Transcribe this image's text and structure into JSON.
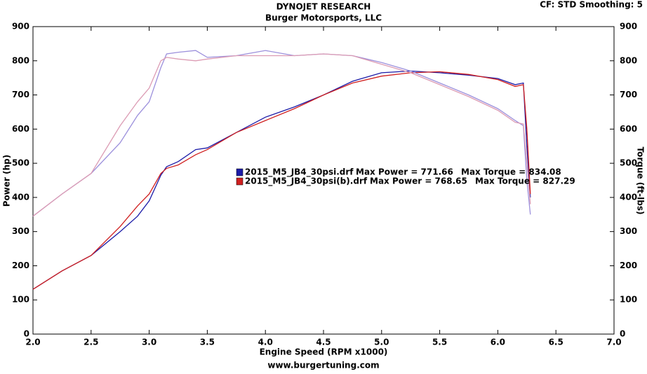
{
  "chart_data": {
    "type": "line",
    "title": "DYNOJET RESEARCH",
    "subtitle": "Burger Motorsports, LLC",
    "corner_note": "CF: STD  Smoothing: 5",
    "x_label": "Engine Speed (RPM x1000)",
    "y_label": "Power (hp)",
    "y2_label": "Torque (ft-lbs)",
    "footer": "www.burgertuning.com",
    "x": [
      2.0,
      2.25,
      2.5,
      2.75,
      2.9,
      3.0,
      3.1,
      3.15,
      3.25,
      3.4,
      3.5,
      3.75,
      4.0,
      4.25,
      4.5,
      4.75,
      5.0,
      5.25,
      5.5,
      5.75,
      6.0,
      6.15,
      6.22,
      6.25,
      6.28
    ],
    "series": [
      {
        "name": "2015_M5_JB4_30psi.drf",
        "color": "#1c1ca8",
        "axis": "y",
        "values": [
          131,
          185,
          230,
          300,
          345,
          390,
          465,
          490,
          505,
          540,
          545,
          590,
          635,
          665,
          700,
          740,
          765,
          770,
          765,
          758,
          748,
          730,
          735,
          550,
          400
        ]
      },
      {
        "name": "2015_M5_JB4_30psi(b).drf",
        "color": "#d02020",
        "axis": "y",
        "values": [
          131,
          185,
          230,
          315,
          375,
          410,
          470,
          485,
          495,
          525,
          540,
          590,
          625,
          660,
          700,
          735,
          755,
          765,
          768,
          760,
          745,
          725,
          730,
          600,
          410
        ]
      },
      {
        "color": "#9c90dc",
        "axis": "y2",
        "values": [
          345,
          410,
          470,
          560,
          640,
          680,
          780,
          820,
          825,
          830,
          810,
          815,
          830,
          815,
          820,
          815,
          795,
          770,
          735,
          700,
          660,
          625,
          610,
          450,
          350
        ]
      },
      {
        "color": "#dc9cb4",
        "axis": "y2",
        "values": [
          345,
          410,
          470,
          610,
          680,
          720,
          800,
          810,
          805,
          800,
          805,
          815,
          815,
          815,
          820,
          815,
          790,
          765,
          730,
          695,
          655,
          620,
          615,
          500,
          380
        ]
      }
    ],
    "legend": [
      {
        "power": "Max Power = 771.66",
        "torque": "Max Torque = 834.08"
      },
      {
        "power": "Max Power = 768.65",
        "torque": "Max Torque = 827.29"
      }
    ],
    "xlim": [
      2.0,
      7.0
    ],
    "xticks": [
      {
        "value": 2,
        "label": "2.0"
      },
      2.5,
      {
        "value": 3,
        "label": "3.0"
      },
      3.5,
      {
        "value": 4,
        "label": "4.0"
      },
      4.5,
      {
        "value": 5,
        "label": "5.0"
      },
      5.5,
      {
        "value": 6,
        "label": "6.0"
      },
      6.5,
      {
        "value": 7,
        "label": "7.0"
      }
    ],
    "ylim": [
      0,
      900
    ],
    "yticks": [
      0,
      100,
      200,
      300,
      400,
      500,
      600,
      700,
      800,
      900
    ],
    "y2lim": [
      0,
      900
    ],
    "y2ticks": [
      0,
      100,
      200,
      300,
      400,
      500,
      600,
      700,
      800,
      900
    ],
    "grid": false
  }
}
